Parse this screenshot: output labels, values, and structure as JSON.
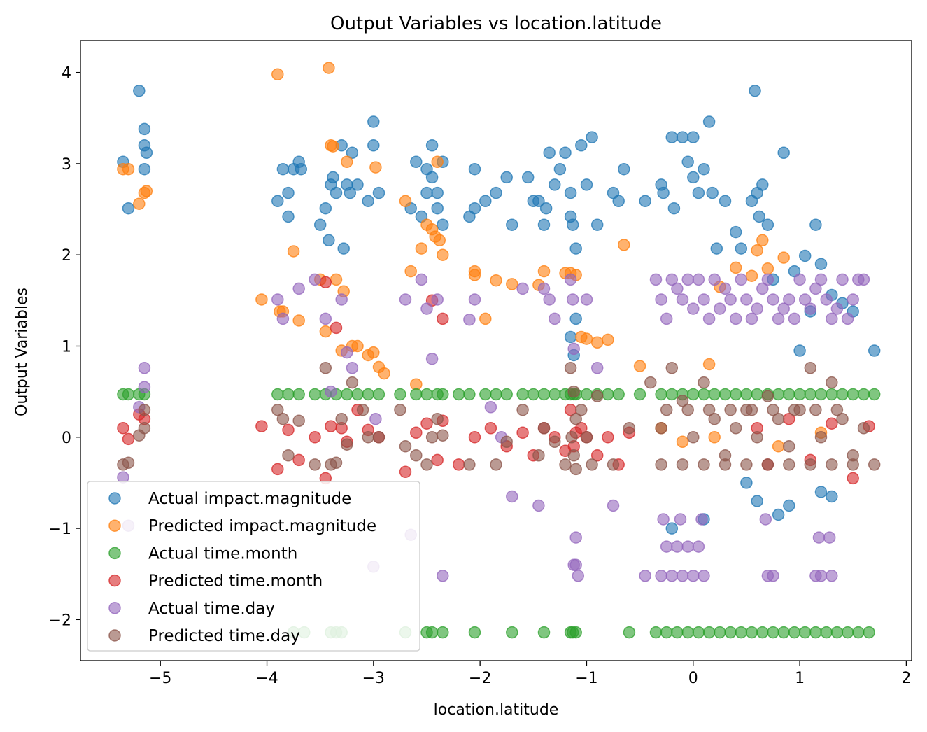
{
  "chart_data": {
    "type": "scatter",
    "title": "Output Variables vs location.latitude",
    "xlabel": "location.latitude",
    "ylabel": "Output Variables",
    "xlim": [
      -5.75,
      2.05
    ],
    "ylim": [
      -2.45,
      4.35
    ],
    "xticks": [
      -5,
      -4,
      -3,
      -2,
      -1,
      0,
      1,
      2
    ],
    "yticks": [
      -2,
      -1,
      0,
      1,
      2,
      3,
      4
    ],
    "grid": false,
    "legend_position": "lower-left",
    "series": [
      {
        "name": "Actual impact.magnitude",
        "color": "#1f77b4",
        "x": [
          -5.35,
          -5.3,
          -5.2,
          -5.15,
          -5.15,
          -5.15,
          -5.13,
          -3.9,
          -3.85,
          -3.8,
          -3.8,
          -3.75,
          -3.7,
          -3.68,
          -3.5,
          -3.45,
          -3.42,
          -3.4,
          -3.38,
          -3.35,
          -3.3,
          -3.28,
          -3.25,
          -3.22,
          -3.2,
          -3.15,
          -3.05,
          -3.0,
          -3.0,
          -2.95,
          -2.65,
          -2.6,
          -2.55,
          -2.5,
          -2.5,
          -2.45,
          -2.45,
          -2.4,
          -2.4,
          -2.35,
          -2.35,
          -2.1,
          -2.05,
          -2.05,
          -1.95,
          -1.85,
          -1.75,
          -1.7,
          -1.55,
          -1.5,
          -1.45,
          -1.4,
          -1.38,
          -1.35,
          -1.3,
          -1.25,
          -1.2,
          -1.15,
          -1.15,
          -1.13,
          -1.1,
          -1.05,
          -1.0,
          -0.95,
          -0.9,
          -0.75,
          -0.7,
          -0.65,
          -0.45,
          -0.3,
          -0.28,
          -0.2,
          -0.18,
          -0.1,
          -0.05,
          0.0,
          0.0,
          0.05,
          0.1,
          0.15,
          0.18,
          0.22,
          0.3,
          0.4,
          0.45,
          0.55,
          0.58,
          0.6,
          0.62,
          0.65,
          0.7,
          0.75,
          0.85,
          0.95,
          1.0,
          1.05,
          1.1,
          1.15,
          1.2,
          1.3,
          1.4,
          1.5,
          1.7,
          0.6,
          0.8,
          1.2,
          -0.2,
          0.1,
          0.5,
          0.9,
          1.3,
          -1.1,
          -1.15,
          -1.12
        ],
        "y": [
          3.02,
          2.51,
          3.8,
          3.38,
          3.2,
          2.94,
          3.12,
          2.59,
          2.94,
          2.68,
          2.42,
          2.94,
          3.02,
          2.94,
          2.33,
          2.51,
          2.16,
          2.77,
          2.85,
          2.68,
          3.2,
          2.07,
          2.77,
          2.68,
          3.12,
          2.77,
          2.59,
          3.46,
          3.2,
          2.68,
          2.51,
          3.02,
          2.42,
          2.94,
          2.68,
          2.85,
          3.2,
          2.51,
          2.68,
          2.33,
          3.02,
          2.42,
          2.94,
          2.51,
          2.59,
          2.68,
          2.85,
          2.33,
          2.85,
          2.59,
          2.59,
          2.33,
          2.51,
          3.12,
          2.77,
          2.94,
          3.12,
          2.68,
          2.42,
          2.33,
          2.07,
          3.2,
          2.77,
          3.29,
          2.33,
          2.68,
          2.59,
          2.94,
          2.59,
          2.77,
          2.68,
          3.29,
          2.51,
          3.29,
          3.02,
          2.85,
          3.29,
          2.68,
          2.94,
          3.46,
          2.68,
          2.07,
          2.59,
          2.25,
          2.07,
          2.59,
          3.8,
          2.68,
          2.42,
          2.77,
          2.33,
          1.73,
          3.12,
          1.82,
          0.95,
          1.99,
          1.38,
          2.33,
          1.9,
          1.56,
          1.47,
          1.38,
          0.95,
          -0.7,
          -0.85,
          -0.6,
          -1.0,
          -0.9,
          -0.5,
          -0.75,
          -0.65,
          1.3,
          1.1,
          0.9
        ]
      },
      {
        "name": "Predicted impact.magnitude",
        "color": "#ff7f0e",
        "x": [
          -5.35,
          -5.3,
          -5.2,
          -5.15,
          -5.13,
          -4.05,
          -3.9,
          -3.88,
          -3.85,
          -3.75,
          -3.7,
          -3.5,
          -3.45,
          -3.42,
          -3.4,
          -3.38,
          -3.35,
          -3.3,
          -3.28,
          -3.25,
          -3.2,
          -3.15,
          -3.05,
          -3.0,
          -2.98,
          -2.95,
          -2.9,
          -2.7,
          -2.65,
          -2.6,
          -2.55,
          -2.5,
          -2.45,
          -2.42,
          -2.4,
          -2.38,
          -2.35,
          -2.05,
          -2.05,
          -1.95,
          -1.85,
          -1.7,
          -1.45,
          -1.4,
          -1.2,
          -1.15,
          -1.1,
          -1.05,
          -1.0,
          -0.9,
          -0.8,
          -0.65,
          -0.5,
          0.15,
          0.25,
          0.4,
          0.55,
          0.6,
          0.65,
          0.7,
          0.85,
          -0.3,
          -0.1,
          0.2,
          0.8,
          1.2
        ],
        "y": [
          2.94,
          2.94,
          2.56,
          2.68,
          2.7,
          1.51,
          3.98,
          1.38,
          1.38,
          2.04,
          1.28,
          1.73,
          1.16,
          4.05,
          3.2,
          3.19,
          1.73,
          0.95,
          1.6,
          3.02,
          1.0,
          1.0,
          0.9,
          0.93,
          2.96,
          0.77,
          0.7,
          2.59,
          1.82,
          0.58,
          2.07,
          2.33,
          2.28,
          2.2,
          3.02,
          2.16,
          2.0,
          1.82,
          1.78,
          1.3,
          1.72,
          1.68,
          1.67,
          1.82,
          1.8,
          1.8,
          1.78,
          1.1,
          1.08,
          1.04,
          1.07,
          2.11,
          0.78,
          0.8,
          1.65,
          1.86,
          1.77,
          2.05,
          2.16,
          1.85,
          1.97,
          0.1,
          -0.05,
          0.0,
          -0.1,
          0.05
        ]
      },
      {
        "name": "Actual time.month",
        "color": "#2ca02c",
        "x": [
          -5.35,
          -5.3,
          -5.2,
          -5.15,
          -3.9,
          -3.8,
          -3.7,
          -3.55,
          -3.45,
          -3.35,
          -3.25,
          -3.15,
          -3.05,
          -2.95,
          -2.75,
          -2.6,
          -2.5,
          -2.4,
          -2.35,
          -2.2,
          -2.1,
          -1.95,
          -1.85,
          -1.75,
          -1.6,
          -1.5,
          -1.4,
          -1.3,
          -1.2,
          -1.15,
          -1.12,
          -1.1,
          -1.0,
          -0.9,
          -0.8,
          -0.7,
          -0.5,
          -0.3,
          -0.2,
          -0.1,
          0.0,
          0.1,
          0.2,
          0.3,
          0.4,
          0.5,
          0.6,
          0.7,
          0.8,
          0.9,
          1.0,
          1.1,
          1.2,
          1.3,
          1.4,
          1.5,
          1.6,
          1.7,
          -3.75,
          -3.65,
          -3.4,
          -3.35,
          -3.3,
          -2.7,
          -2.5,
          -2.45,
          -2.35,
          -2.05,
          -1.7,
          -1.4,
          -1.15,
          -1.13,
          -1.1,
          -0.6,
          -0.35,
          -0.25,
          -0.15,
          -0.05,
          0.05,
          0.15,
          0.25,
          0.35,
          0.45,
          0.55,
          0.65,
          0.75,
          0.85,
          0.95,
          1.05,
          1.15,
          1.25,
          1.35,
          1.45,
          1.55,
          1.65
        ],
        "y": [
          0.47,
          0.47,
          0.47,
          0.47,
          0.47,
          0.47,
          0.47,
          0.47,
          0.47,
          0.47,
          0.47,
          0.47,
          0.47,
          0.47,
          0.47,
          0.47,
          0.47,
          0.47,
          0.47,
          0.47,
          0.47,
          0.47,
          0.47,
          0.47,
          0.47,
          0.47,
          0.47,
          0.47,
          0.47,
          0.47,
          0.47,
          0.47,
          0.47,
          0.47,
          0.47,
          0.47,
          0.47,
          0.47,
          0.47,
          0.47,
          0.47,
          0.47,
          0.47,
          0.47,
          0.47,
          0.47,
          0.47,
          0.47,
          0.47,
          0.47,
          0.47,
          0.47,
          0.47,
          0.47,
          0.47,
          0.47,
          0.47,
          0.47,
          -2.14,
          -2.14,
          -2.14,
          -2.14,
          -2.14,
          -2.14,
          -2.14,
          -2.14,
          -2.14,
          -2.14,
          -2.14,
          -2.14,
          -2.14,
          -2.14,
          -2.14,
          -2.14,
          -2.14,
          -2.14,
          -2.14,
          -2.14,
          -2.14,
          -2.14,
          -2.14,
          -2.14,
          -2.14,
          -2.14,
          -2.14,
          -2.14,
          -2.14,
          -2.14,
          -2.14,
          -2.14,
          -2.14,
          -2.14,
          -2.14,
          -2.14,
          -2.14
        ]
      },
      {
        "name": "Predicted time.month",
        "color": "#d62728",
        "x": [
          -5.35,
          -5.3,
          -5.2,
          -5.15,
          -4.05,
          -3.9,
          -3.8,
          -3.7,
          -3.55,
          -3.45,
          -3.4,
          -3.3,
          -3.25,
          -3.15,
          -3.05,
          -2.95,
          -2.7,
          -2.6,
          -2.5,
          -2.4,
          -2.35,
          -2.2,
          -2.05,
          -1.9,
          -1.75,
          -1.6,
          -1.5,
          -1.4,
          -1.3,
          -1.2,
          -1.15,
          -1.12,
          -1.1,
          -1.05,
          -1.0,
          -0.9,
          -0.8,
          -0.7,
          -0.6,
          0.6,
          0.7,
          0.9,
          1.1,
          1.3,
          1.5,
          1.65,
          -3.45,
          -3.35,
          -2.45,
          -2.35
        ],
        "y": [
          0.1,
          -0.02,
          0.25,
          0.2,
          0.12,
          -0.35,
          0.08,
          -0.25,
          0.0,
          -0.45,
          0.12,
          0.1,
          -0.05,
          0.3,
          0.08,
          0.0,
          -0.38,
          0.05,
          0.15,
          -0.25,
          0.18,
          -0.3,
          0.0,
          0.1,
          -0.1,
          0.05,
          -0.2,
          0.1,
          0.0,
          -0.15,
          0.3,
          -0.1,
          0.05,
          0.1,
          0.0,
          -0.2,
          0.0,
          -0.3,
          0.05,
          0.1,
          -0.3,
          0.2,
          -0.25,
          0.15,
          -0.45,
          0.12,
          1.7,
          1.2,
          1.5,
          1.3
        ]
      },
      {
        "name": "Actual time.day",
        "color": "#9467bd",
        "x": [
          -5.35,
          -5.3,
          -5.2,
          -5.15,
          -5.15,
          -3.9,
          -3.85,
          -3.7,
          -3.55,
          -3.45,
          -3.4,
          -3.3,
          -3.25,
          -3.2,
          -3.0,
          -2.98,
          -2.7,
          -2.65,
          -2.55,
          -2.5,
          -2.45,
          -2.4,
          -2.35,
          -2.1,
          -2.05,
          -1.9,
          -1.8,
          -1.7,
          -1.6,
          -1.45,
          -1.4,
          -1.35,
          -1.3,
          -1.15,
          -1.13,
          -1.12,
          -1.1,
          -1.08,
          -1.0,
          -0.9,
          -0.75,
          -0.45,
          -0.35,
          -0.3,
          -0.25,
          -0.2,
          -0.15,
          -0.1,
          -0.05,
          0.0,
          0.05,
          0.1,
          0.15,
          0.2,
          0.25,
          0.3,
          0.35,
          0.4,
          0.45,
          0.5,
          0.55,
          0.6,
          0.65,
          0.7,
          0.75,
          0.8,
          0.85,
          0.9,
          0.95,
          1.0,
          1.05,
          1.1,
          1.15,
          1.2,
          1.25,
          1.3,
          1.35,
          1.4,
          1.45,
          1.5,
          1.55,
          1.6,
          -0.3,
          -0.2,
          -0.1,
          0.0,
          0.1,
          -0.25,
          -0.15,
          -0.05,
          0.05,
          0.7,
          0.75,
          1.15,
          1.2,
          1.3,
          -1.12,
          -1.1,
          -0.28,
          -0.12,
          0.08,
          0.68,
          1.18,
          1.28
        ],
        "y": [
          -0.44,
          -0.97,
          0.33,
          0.76,
          0.55,
          1.51,
          1.3,
          1.63,
          1.73,
          1.3,
          0.5,
          1.51,
          0.93,
          0.76,
          -1.42,
          0.2,
          1.51,
          -1.07,
          1.73,
          1.41,
          0.86,
          1.51,
          -1.52,
          1.29,
          1.51,
          0.33,
          0.0,
          -0.65,
          1.63,
          -0.75,
          1.63,
          1.51,
          1.3,
          1.73,
          1.51,
          0.97,
          -1.1,
          -1.52,
          1.51,
          0.76,
          -0.75,
          -1.52,
          1.73,
          1.51,
          1.3,
          1.73,
          1.63,
          1.51,
          1.73,
          1.41,
          1.73,
          1.51,
          1.3,
          1.73,
          1.41,
          1.63,
          1.51,
          1.3,
          1.73,
          1.51,
          1.3,
          1.41,
          1.63,
          1.73,
          1.51,
          1.3,
          1.41,
          1.51,
          1.3,
          1.73,
          1.51,
          1.41,
          1.63,
          1.73,
          1.51,
          1.3,
          1.41,
          1.73,
          1.3,
          1.51,
          1.73,
          1.73,
          -1.52,
          -1.52,
          -1.52,
          -1.52,
          -1.52,
          -1.2,
          -1.2,
          -1.2,
          -1.2,
          -1.52,
          -1.52,
          -1.52,
          -1.52,
          -1.52,
          -1.4,
          -1.4,
          -0.9,
          -0.9,
          -0.9,
          -0.9,
          -1.1,
          -1.1
        ]
      },
      {
        "name": "Predicted time.day",
        "color": "#8c564b",
        "x": [
          -5.35,
          -5.3,
          -5.2,
          -5.15,
          -5.15,
          -3.9,
          -3.85,
          -3.8,
          -3.7,
          -3.55,
          -3.45,
          -3.4,
          -3.35,
          -3.3,
          -3.25,
          -3.2,
          -3.1,
          -3.05,
          -2.95,
          -2.75,
          -2.7,
          -2.6,
          -2.5,
          -2.45,
          -2.4,
          -2.35,
          -2.1,
          -1.85,
          -1.75,
          -1.6,
          -1.45,
          -1.4,
          -1.3,
          -1.2,
          -1.15,
          -1.12,
          -1.1,
          -1.05,
          -1.0,
          -0.95,
          -0.9,
          -0.75,
          -0.6,
          -0.4,
          -0.3,
          -0.2,
          -0.1,
          0.0,
          0.1,
          0.2,
          0.3,
          0.4,
          0.5,
          0.6,
          0.7,
          0.8,
          0.9,
          1.0,
          1.1,
          1.2,
          1.3,
          1.4,
          1.5,
          1.6,
          1.7,
          -0.3,
          -0.1,
          0.1,
          0.3,
          0.5,
          0.7,
          0.9,
          1.1,
          1.3,
          1.5,
          -0.25,
          -0.05,
          0.15,
          0.35,
          0.55,
          0.75,
          0.95,
          1.15,
          1.35,
          -1.12,
          -1.1,
          -1.14
        ],
        "y": [
          -0.3,
          -0.28,
          0.02,
          0.3,
          0.1,
          0.3,
          0.2,
          -0.2,
          0.18,
          -0.3,
          0.76,
          -0.3,
          -0.28,
          0.2,
          -0.08,
          0.6,
          0.3,
          0.0,
          0.0,
          0.3,
          -0.1,
          -0.2,
          -0.3,
          0.0,
          0.2,
          0.02,
          -0.3,
          -0.3,
          -0.05,
          0.3,
          -0.2,
          0.1,
          -0.05,
          -0.3,
          0.76,
          0.5,
          0.2,
          0.3,
          0.0,
          -0.3,
          0.45,
          -0.3,
          0.1,
          0.6,
          0.1,
          0.76,
          0.4,
          0.0,
          0.6,
          0.2,
          -0.2,
          0.1,
          0.3,
          0.0,
          0.45,
          0.2,
          -0.1,
          0.3,
          0.76,
          0.0,
          0.6,
          0.2,
          -0.2,
          0.1,
          -0.3,
          -0.3,
          -0.3,
          -0.3,
          -0.3,
          -0.3,
          -0.3,
          -0.3,
          -0.3,
          -0.3,
          -0.3,
          0.3,
          0.3,
          0.3,
          0.3,
          0.3,
          0.3,
          0.3,
          0.3,
          0.3,
          -0.2,
          -0.35,
          0.0
        ]
      }
    ]
  }
}
